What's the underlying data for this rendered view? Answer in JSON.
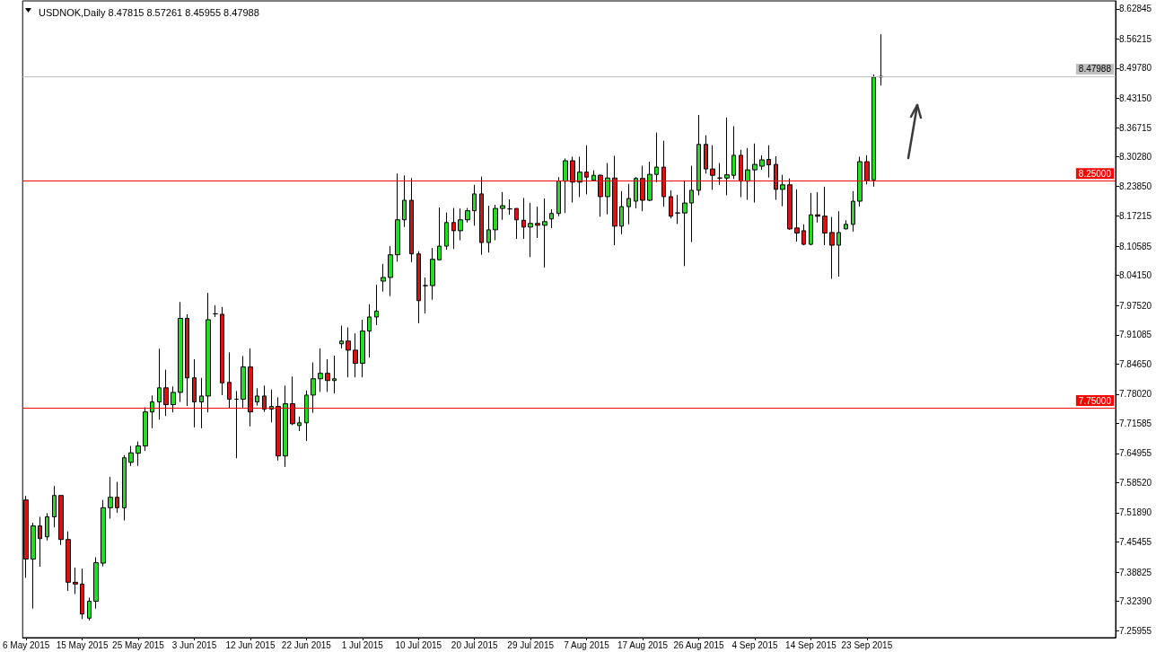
{
  "chart_data": {
    "type": "candlestick",
    "title": "USDNOK,Daily 8.47815 8.57261 8.45955 8.47988",
    "categories": [
      "6 May 2015",
      null,
      null,
      null,
      null,
      null,
      null,
      null,
      "15 May 2015",
      null,
      null,
      null,
      null,
      null,
      null,
      null,
      "25 May 2015",
      null,
      null,
      null,
      null,
      null,
      null,
      null,
      "3 Jun 2015",
      null,
      null,
      null,
      null,
      null,
      null,
      null,
      "12 Jun 2015",
      null,
      null,
      null,
      null,
      null,
      null,
      null,
      "22 Jun 2015",
      null,
      null,
      null,
      null,
      null,
      null,
      null,
      "1 Jul 2015",
      null,
      null,
      null,
      null,
      null,
      null,
      null,
      "10 Jul 2015",
      null,
      null,
      null,
      null,
      null,
      null,
      null,
      "20 Jul 2015",
      null,
      null,
      null,
      null,
      null,
      null,
      null,
      "29 Jul 2015",
      null,
      null,
      null,
      null,
      null,
      null,
      null,
      "7 Aug 2015",
      null,
      null,
      null,
      null,
      null,
      null,
      null,
      "17 Aug 2015",
      null,
      null,
      null,
      null,
      null,
      null,
      null,
      "26 Aug 2015",
      null,
      null,
      null,
      null,
      null,
      null,
      null,
      "4 Sep 2015",
      null,
      null,
      null,
      null,
      null,
      null,
      null,
      "14 Sep 2015",
      null,
      null,
      null,
      null,
      null,
      null,
      null,
      "23 Sep 2015",
      null,
      null,
      null,
      null,
      null,
      null,
      null,
      null,
      null,
      null,
      null,
      null,
      null,
      null,
      null,
      null,
      null,
      null,
      null,
      null,
      null,
      null,
      null,
      null,
      null,
      null,
      null,
      null,
      null,
      null,
      null,
      null,
      null,
      null,
      null
    ],
    "ohlc": [
      [
        7.547,
        7.556,
        7.376,
        7.417
      ],
      [
        7.417,
        7.497,
        7.308,
        7.49
      ],
      [
        7.49,
        7.51,
        7.4,
        7.462
      ],
      [
        7.466,
        7.518,
        7.458,
        7.51
      ],
      [
        7.51,
        7.578,
        7.487,
        7.557
      ],
      [
        7.557,
        7.557,
        7.448,
        7.46
      ],
      [
        7.46,
        7.478,
        7.347,
        7.366
      ],
      [
        7.366,
        7.398,
        7.34,
        7.362
      ],
      [
        7.362,
        7.396,
        7.285,
        7.296
      ],
      [
        7.287,
        7.332,
        7.282,
        7.324
      ],
      [
        7.324,
        7.421,
        7.308,
        7.409
      ],
      [
        7.408,
        7.547,
        7.401,
        7.53
      ],
      [
        7.53,
        7.598,
        7.506,
        7.553
      ],
      [
        7.553,
        7.587,
        7.519,
        7.53
      ],
      [
        7.53,
        7.646,
        7.502,
        7.64
      ],
      [
        7.63,
        7.666,
        7.622,
        7.651
      ],
      [
        7.65,
        7.676,
        7.622,
        7.666
      ],
      [
        7.666,
        7.751,
        7.655,
        7.741
      ],
      [
        7.741,
        7.777,
        7.705,
        7.763
      ],
      [
        7.763,
        7.88,
        7.724,
        7.794
      ],
      [
        7.794,
        7.834,
        7.732,
        7.757
      ],
      [
        7.757,
        7.797,
        7.74,
        7.784
      ],
      [
        7.784,
        7.983,
        7.763,
        7.947
      ],
      [
        7.947,
        7.956,
        7.754,
        7.816
      ],
      [
        7.816,
        7.857,
        7.707,
        7.763
      ],
      [
        7.763,
        7.816,
        7.705,
        7.776
      ],
      [
        7.776,
        8.003,
        7.74,
        7.944
      ],
      [
        7.957,
        7.976,
        7.95,
        7.957
      ],
      [
        7.956,
        7.972,
        7.778,
        7.805
      ],
      [
        7.806,
        7.872,
        7.749,
        7.769
      ],
      [
        7.769,
        7.787,
        7.639,
        7.769
      ],
      [
        7.769,
        7.864,
        7.749,
        7.84
      ],
      [
        7.84,
        7.881,
        7.709,
        7.741
      ],
      [
        7.763,
        7.793,
        7.755,
        7.776
      ],
      [
        7.776,
        7.799,
        7.741,
        7.747
      ],
      [
        7.747,
        7.79,
        7.718,
        7.753
      ],
      [
        7.753,
        7.773,
        7.634,
        7.644
      ],
      [
        7.644,
        7.799,
        7.62,
        7.759
      ],
      [
        7.759,
        7.819,
        7.712,
        7.715
      ],
      [
        7.711,
        7.731,
        7.699,
        7.717
      ],
      [
        7.717,
        7.788,
        7.677,
        7.778
      ],
      [
        7.778,
        7.85,
        7.739,
        7.814
      ],
      [
        7.814,
        7.881,
        7.785,
        7.826
      ],
      [
        7.826,
        7.857,
        7.785,
        7.81
      ],
      [
        7.81,
        7.865,
        7.782,
        7.814
      ],
      [
        7.891,
        7.931,
        7.881,
        7.897
      ],
      [
        7.897,
        7.927,
        7.817,
        7.877
      ],
      [
        7.877,
        7.914,
        7.817,
        7.848
      ],
      [
        7.848,
        7.944,
        7.817,
        7.919
      ],
      [
        7.919,
        7.978,
        7.861,
        7.95
      ],
      [
        7.95,
        8.021,
        7.932,
        7.963
      ],
      [
        8.029,
        8.067,
        8.006,
        8.037
      ],
      [
        8.037,
        8.106,
        7.996,
        8.087
      ],
      [
        8.087,
        8.266,
        8.072,
        8.164
      ],
      [
        8.164,
        8.262,
        8.148,
        8.207
      ],
      [
        8.207,
        8.256,
        8.071,
        8.089
      ],
      [
        8.089,
        8.095,
        7.936,
        7.986
      ],
      [
        8.019,
        8.037,
        7.958,
        8.019
      ],
      [
        8.019,
        8.102,
        7.988,
        8.077
      ],
      [
        8.076,
        8.191,
        8.075,
        8.106
      ],
      [
        8.106,
        8.18,
        8.098,
        8.158
      ],
      [
        8.158,
        8.19,
        8.1,
        8.14
      ],
      [
        8.14,
        8.189,
        8.119,
        8.164
      ],
      [
        8.164,
        8.19,
        8.158,
        8.184
      ],
      [
        8.184,
        8.241,
        8.151,
        8.221
      ],
      [
        8.221,
        8.259,
        8.087,
        8.114
      ],
      [
        8.114,
        8.195,
        8.092,
        8.142
      ],
      [
        8.142,
        8.197,
        8.119,
        8.189
      ],
      [
        8.189,
        8.225,
        8.164,
        8.195
      ],
      [
        8.188,
        8.209,
        8.175,
        8.188
      ],
      [
        8.189,
        8.189,
        8.122,
        8.164
      ],
      [
        8.163,
        8.212,
        8.122,
        8.148
      ],
      [
        8.148,
        8.201,
        8.082,
        8.156
      ],
      [
        8.156,
        8.193,
        8.124,
        8.152
      ],
      [
        8.152,
        8.211,
        8.059,
        8.16
      ],
      [
        8.166,
        8.187,
        8.146,
        8.178
      ],
      [
        8.178,
        8.258,
        8.172,
        8.249
      ],
      [
        8.249,
        8.299,
        8.179,
        8.294
      ],
      [
        8.294,
        8.303,
        8.202,
        8.247
      ],
      [
        8.247,
        8.303,
        8.214,
        8.269
      ],
      [
        8.269,
        8.328,
        8.22,
        8.258
      ],
      [
        8.251,
        8.273,
        8.25,
        8.262
      ],
      [
        8.262,
        8.264,
        8.171,
        8.215
      ],
      [
        8.215,
        8.289,
        8.176,
        8.256
      ],
      [
        8.256,
        8.305,
        8.108,
        8.15
      ],
      [
        8.15,
        8.227,
        8.132,
        8.193
      ],
      [
        8.193,
        8.243,
        8.154,
        8.211
      ],
      [
        8.205,
        8.258,
        8.189,
        8.255
      ],
      [
        8.255,
        8.283,
        8.183,
        8.207
      ],
      [
        8.207,
        8.292,
        8.205,
        8.264
      ],
      [
        8.264,
        8.356,
        8.247,
        8.28
      ],
      [
        8.28,
        8.338,
        8.193,
        8.215
      ],
      [
        8.215,
        8.229,
        8.167,
        8.172
      ],
      [
        8.179,
        8.219,
        8.155,
        8.179
      ],
      [
        8.179,
        8.251,
        8.062,
        8.201
      ],
      [
        8.201,
        8.283,
        8.115,
        8.229
      ],
      [
        8.229,
        8.395,
        8.218,
        8.33
      ],
      [
        8.33,
        8.35,
        8.266,
        8.276
      ],
      [
        8.276,
        8.328,
        8.23,
        8.262
      ],
      [
        8.256,
        8.289,
        8.241,
        8.256
      ],
      [
        8.256,
        8.389,
        8.218,
        8.263
      ],
      [
        8.262,
        8.37,
        8.254,
        8.306
      ],
      [
        8.306,
        8.318,
        8.214,
        8.249
      ],
      [
        8.249,
        8.322,
        8.208,
        8.274
      ],
      [
        8.274,
        8.332,
        8.202,
        8.286
      ],
      [
        8.282,
        8.306,
        8.274,
        8.296
      ],
      [
        8.297,
        8.328,
        8.257,
        8.285
      ],
      [
        8.286,
        8.304,
        8.208,
        8.231
      ],
      [
        8.231,
        8.263,
        8.194,
        8.241
      ],
      [
        8.241,
        8.255,
        8.142,
        8.144
      ],
      [
        8.146,
        8.231,
        8.116,
        8.135
      ],
      [
        8.14,
        8.154,
        8.108,
        8.11
      ],
      [
        8.11,
        8.223,
        8.108,
        8.175
      ],
      [
        8.175,
        8.225,
        8.158,
        8.172
      ],
      [
        8.172,
        8.237,
        8.108,
        8.135
      ],
      [
        8.136,
        8.17,
        8.034,
        8.108
      ],
      [
        8.108,
        8.183,
        8.039,
        8.136
      ],
      [
        8.144,
        8.163,
        8.143,
        8.154
      ],
      [
        8.154,
        8.227,
        8.138,
        8.205
      ],
      [
        8.205,
        8.303,
        8.193,
        8.292
      ],
      [
        8.292,
        8.306,
        8.242,
        8.25
      ],
      [
        8.252,
        8.484,
        8.237,
        8.478
      ],
      [
        8.47815,
        8.57261,
        8.45955,
        8.47988
      ],
      null,
      null,
      null,
      null,
      null,
      null,
      null,
      null,
      null,
      null,
      null,
      null,
      null,
      null,
      null,
      null,
      null,
      null,
      null,
      null,
      null,
      null,
      null,
      null,
      null,
      null,
      null,
      null,
      null,
      null,
      null,
      null,
      null
    ],
    "colors": [
      "#dd1111",
      "#22dd22",
      "#dd1111",
      "#22dd22",
      "#22dd22",
      "#dd1111",
      "#dd1111",
      "#dd1111",
      "#dd1111",
      "#22dd22",
      "#22dd22",
      "#22dd22",
      "#22dd22",
      "#dd1111",
      "#22dd22",
      "#22dd22",
      "#22dd22",
      "#22dd22",
      "#22dd22",
      "#22dd22",
      "#dd1111",
      "#22dd22",
      "#22dd22",
      "#dd1111",
      "#dd1111",
      "#22dd22",
      "#22dd22",
      "#000000",
      "#dd1111",
      "#dd1111",
      "#000000",
      "#22dd22",
      "#dd1111",
      "#22dd22",
      "#dd1111",
      "#22dd22",
      "#dd1111",
      "#22dd22",
      "#dd1111",
      "#22dd22",
      "#22dd22",
      "#22dd22",
      "#22dd22",
      "#dd1111",
      "#22dd22",
      "#22dd22",
      "#dd1111",
      "#dd1111",
      "#22dd22",
      "#22dd22",
      "#22dd22",
      "#22dd22",
      "#22dd22",
      "#22dd22",
      "#22dd22",
      "#dd1111",
      "#dd1111",
      "#000000",
      "#22dd22",
      "#22dd22",
      "#22dd22",
      "#dd1111",
      "#22dd22",
      "#22dd22",
      "#22dd22",
      "#dd1111",
      "#22dd22",
      "#22dd22",
      "#22dd22",
      "#000000",
      "#dd1111",
      "#dd1111",
      "#22dd22",
      "#dd1111",
      "#22dd22",
      "#22dd22",
      "#22dd22",
      "#22dd22",
      "#dd1111",
      "#22dd22",
      "#dd1111",
      "#22dd22",
      "#dd1111",
      "#22dd22",
      "#dd1111",
      "#22dd22",
      "#22dd22",
      "#22dd22",
      "#dd1111",
      "#22dd22",
      "#22dd22",
      "#dd1111",
      "#dd1111",
      "#000000",
      "#22dd22",
      "#22dd22",
      "#22dd22",
      "#dd1111",
      "#dd1111",
      "#000000",
      "#22dd22",
      "#22dd22",
      "#dd1111",
      "#22dd22",
      "#22dd22",
      "#22dd22",
      "#dd1111",
      "#dd1111",
      "#22dd22",
      "#dd1111",
      "#dd1111",
      "#dd1111",
      "#22dd22",
      "#dd1111",
      "#dd1111",
      "#dd1111",
      "#22dd22",
      "#22dd22",
      "#22dd22",
      "#22dd22",
      "#dd1111",
      "#22dd22",
      "#22dd22",
      null,
      null,
      null,
      null,
      null,
      null,
      null,
      null,
      null,
      null,
      null,
      null,
      null,
      null,
      null,
      null,
      null,
      null,
      null,
      null,
      null,
      null,
      null,
      null,
      null,
      null,
      null,
      null,
      null,
      null,
      null,
      null,
      null
    ],
    "ylim": [
      7.244,
      8.646
    ],
    "yticks": [
      8.62845,
      8.56215,
      {
        "value": 8.4978,
        "label": "8.49780"
      },
      {
        "value": 8.4315,
        "label": "8.43150"
      },
      8.36715,
      {
        "value": 8.3028,
        "label": "8.30280"
      },
      {
        "value": 8.2385,
        "label": "8.23850"
      },
      8.17215,
      8.10585,
      {
        "value": 8.0415,
        "label": "8.04150"
      },
      {
        "value": 7.9752,
        "label": "7.97520"
      },
      7.91085,
      {
        "value": 7.8465,
        "label": "7.84650"
      },
      {
        "value": 7.7802,
        "label": "7.78020"
      },
      7.71585,
      7.64955,
      {
        "value": 7.5852,
        "label": "7.58520"
      },
      {
        "value": 7.5189,
        "label": "7.51890"
      },
      7.45455,
      7.38825,
      {
        "value": 7.3239,
        "label": "7.32390"
      },
      7.25955
    ],
    "ref_lines": [
      {
        "axis": "y",
        "value": 8.47988,
        "label": "8.47988",
        "color": "#c0c0c0"
      },
      {
        "axis": "y",
        "value": 8.25,
        "label": "8.25000",
        "color": "#ff0000"
      },
      {
        "axis": "y",
        "value": 7.75,
        "label": "7.75000",
        "color": "#ff0000"
      }
    ]
  }
}
